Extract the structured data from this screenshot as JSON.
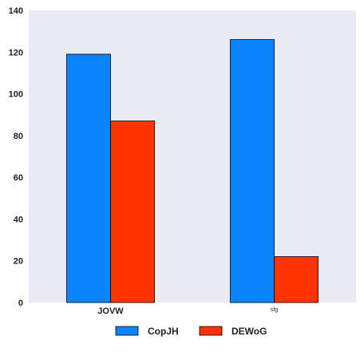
{
  "chart_data": {
    "type": "bar",
    "categories": [
      "JOVW",
      "sfg"
    ],
    "series": [
      {
        "name": "CopJH",
        "values": [
          119,
          126
        ],
        "color": "#0a84ff"
      },
      {
        "name": "DEWoG",
        "values": [
          87,
          22
        ],
        "color": "#ff3300"
      }
    ],
    "ylim": [
      0,
      140
    ],
    "yticks": [
      0,
      20,
      40,
      60,
      80,
      100,
      120,
      140
    ],
    "grid": false,
    "background": "#eaeaf2",
    "legend_position": "bottom-center"
  }
}
